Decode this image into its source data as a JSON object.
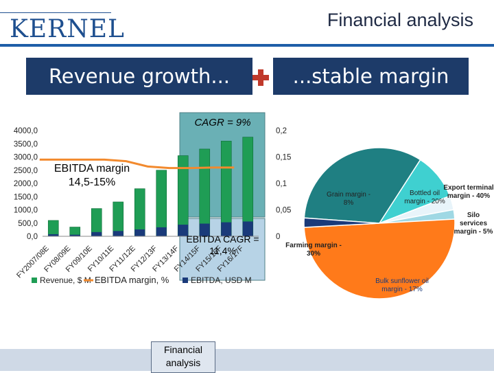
{
  "header": {
    "logo_text": "KERNEL",
    "title": "Financial analysis"
  },
  "panels": {
    "left_title": "Revenue growth...",
    "right_title": "...stable margin"
  },
  "colors": {
    "navy": "#1d3b69",
    "revenue_green": "#1f9d55",
    "ebitda_navy": "#1a3a7a",
    "margin_orange": "#f28a2e",
    "highlight_teal": "#6ab0b5",
    "pie_teal": "#1f7f82",
    "pie_cyan": "#3fd0d0",
    "pie_orange": "#ff7a1a"
  },
  "chart_data": [
    {
      "type": "bar",
      "categories": [
        "FY2007/08E",
        "FY08/09E",
        "FY09/10E",
        "FY10/11E",
        "FY11/12E",
        "FY12/13F",
        "FY13/14F",
        "FY14/15F",
        "FY15/16F",
        "FY16/17F"
      ],
      "series": [
        {
          "name": "Revenue, $ M",
          "values": [
            600,
            350,
            1050,
            1300,
            1800,
            2500,
            3050,
            3300,
            3600,
            3750
          ]
        },
        {
          "name": "EBITDA, USD M",
          "values": [
            80,
            60,
            160,
            200,
            260,
            340,
            440,
            480,
            530,
            560
          ]
        },
        {
          "name": "EBITDA margin, %",
          "axis": "right",
          "values": [
            0.145,
            0.145,
            0.145,
            0.145,
            0.142,
            0.132,
            0.129,
            0.129,
            0.13,
            0.13
          ]
        }
      ],
      "left_ticks": [
        "4000,0",
        "3500,0",
        "3000,0",
        "2500,0",
        "2000,0",
        "1500,0",
        "1000,0",
        "500,0",
        "0,0"
      ],
      "right_ticks": [
        "0,2",
        "0,15",
        "0,1",
        "0,05",
        "0"
      ],
      "ylim": [
        0,
        4000
      ],
      "y2lim": [
        0,
        0.2
      ],
      "annotations": {
        "cagr": "CAGR = 9%",
        "ebitda_cagr_line1": "EBITDA CAGR =",
        "ebitda_cagr_line2": "11,4%",
        "margin_line1": "EBITDA margin",
        "margin_line2": "14,5-15%"
      }
    },
    {
      "type": "pie",
      "labels": [
        "Grain margin - 8%",
        "Bottled oil margin - 20%",
        "Export terminal margin - 40%",
        "Silo services margin - 5%",
        "Bulk sunflower oil margin - 17%",
        "Farming margin - 30%"
      ],
      "values": [
        33,
        10,
        3,
        2,
        50,
        2
      ]
    }
  ],
  "footer": {
    "box_line1": "Financial",
    "box_line2": "analysis"
  }
}
